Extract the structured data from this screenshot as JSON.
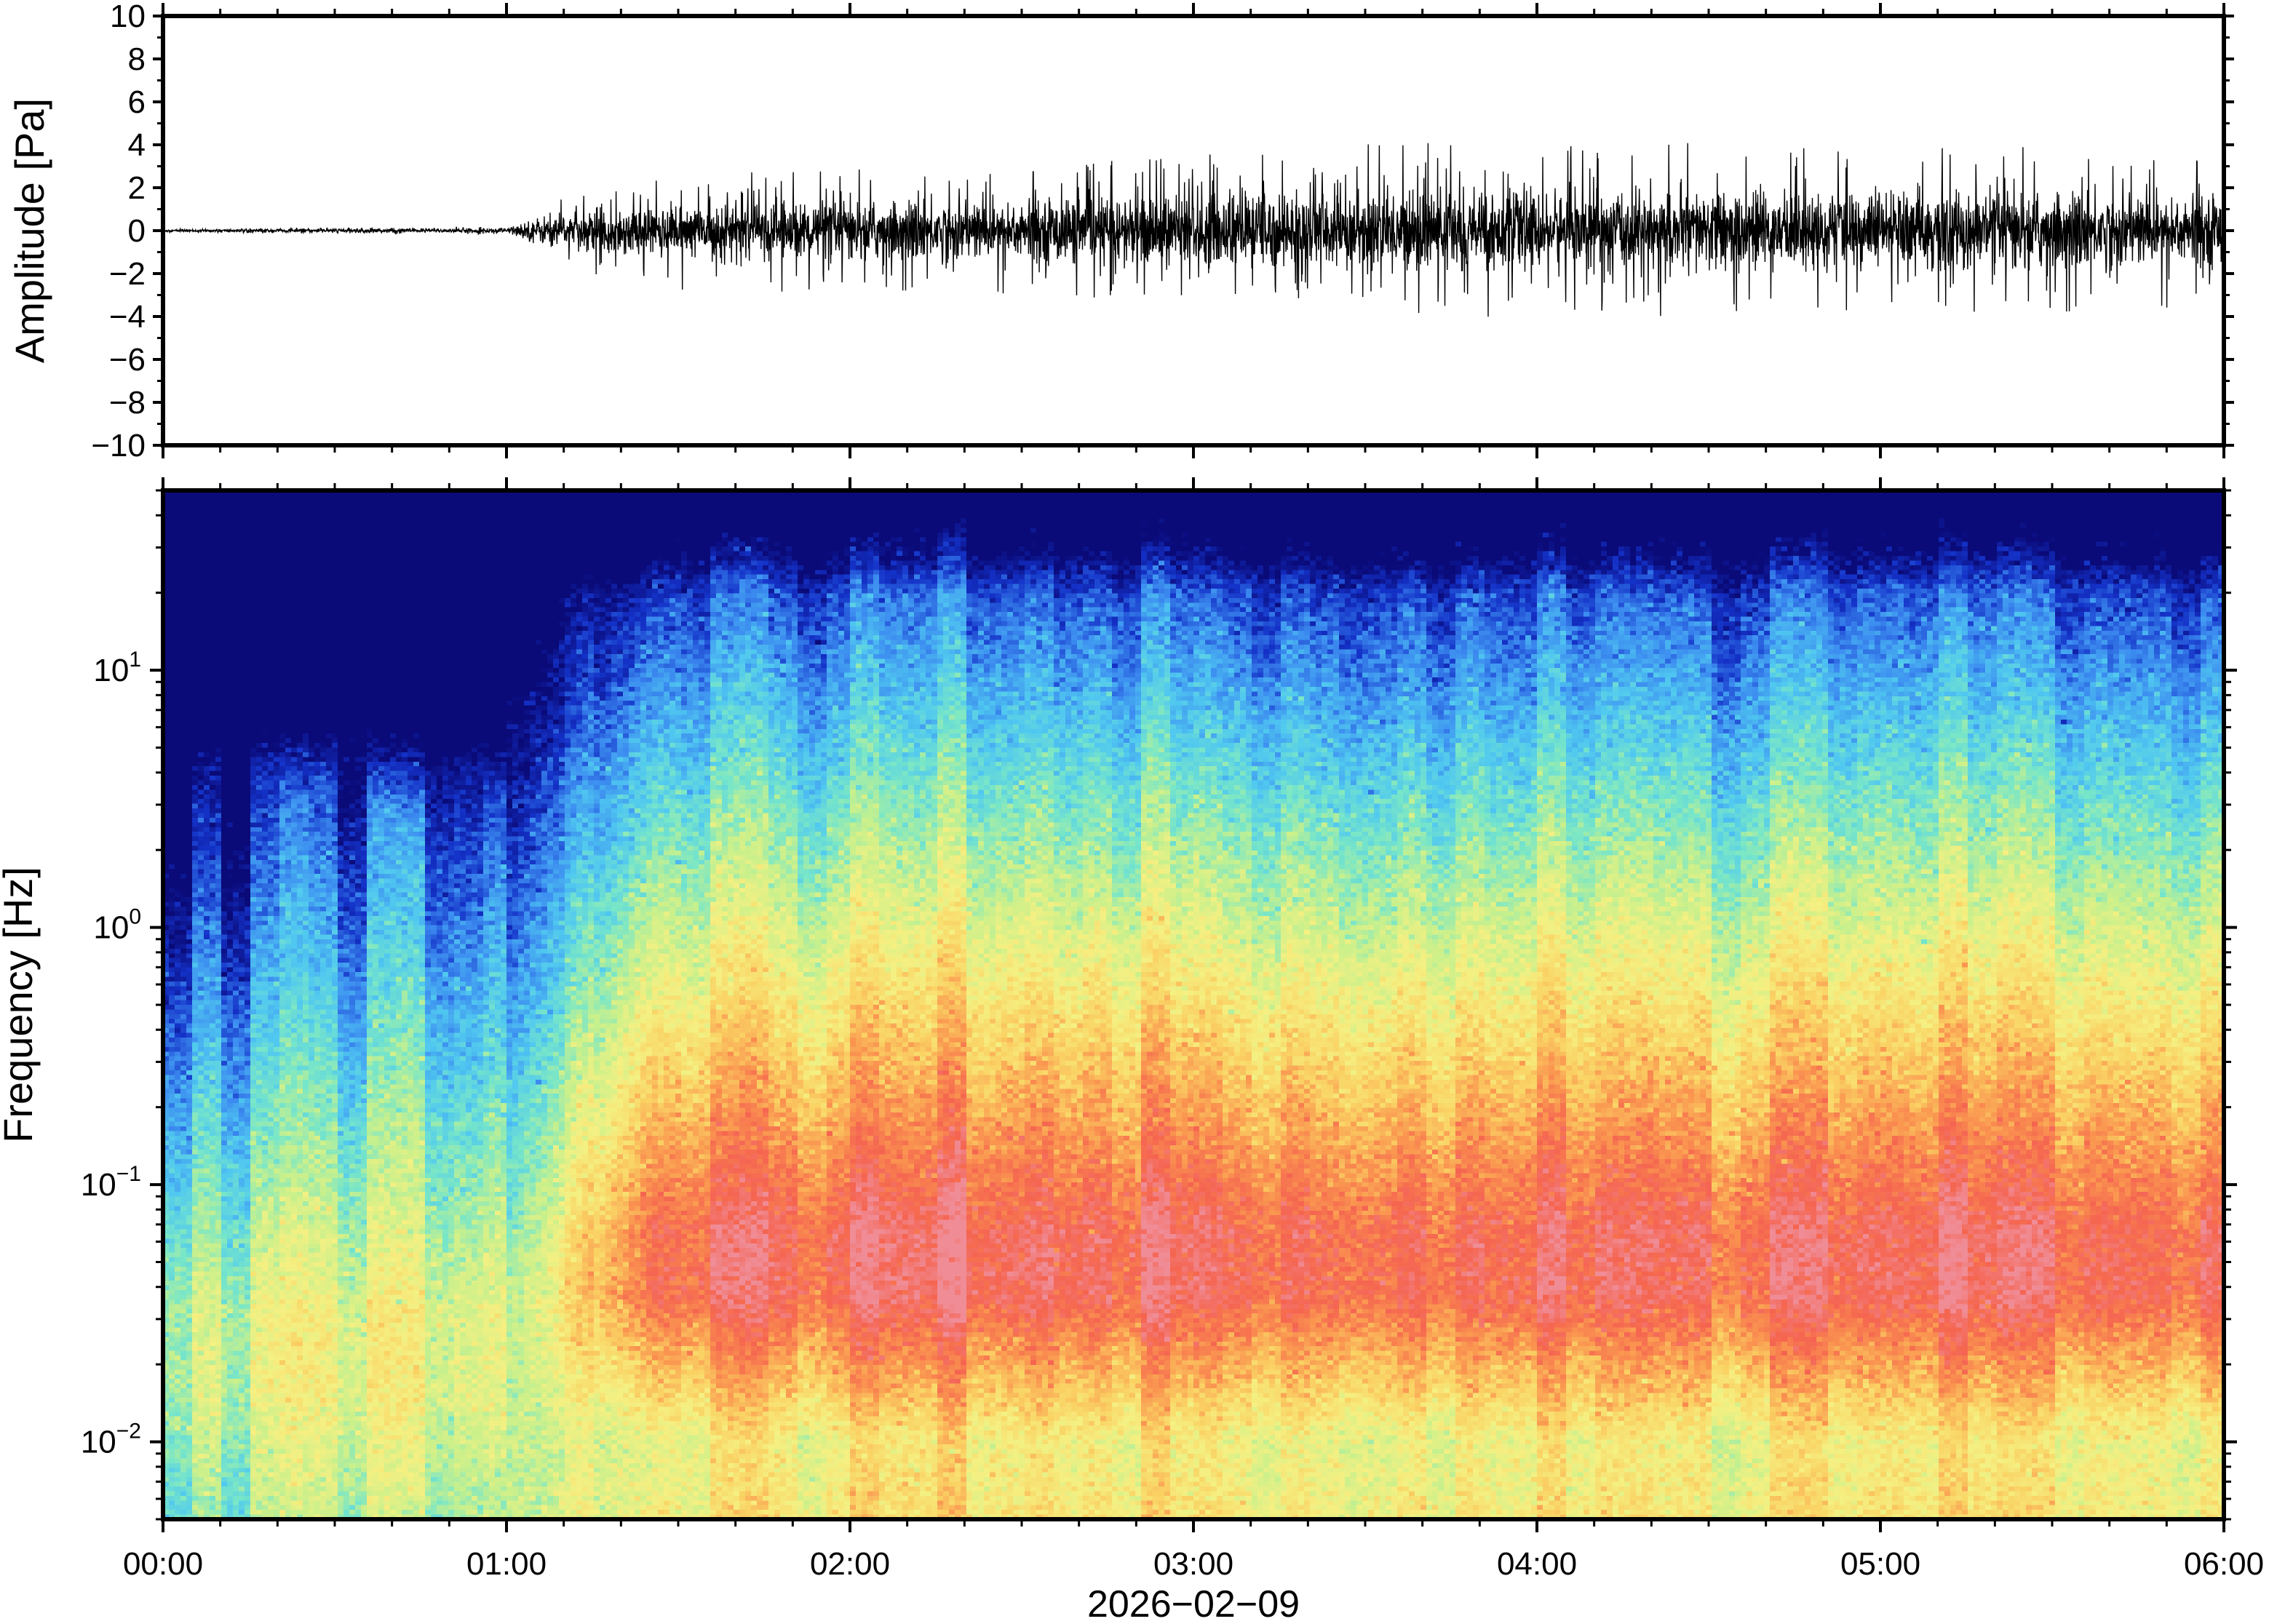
{
  "chart_data": [
    {
      "type": "line",
      "panel": "waveform",
      "ylabel": "Amplitude [Pa]",
      "ylim": [
        -10,
        10
      ],
      "yticks": [
        {
          "value": 10,
          "label": "10"
        },
        {
          "value": 8,
          "label": "8"
        },
        {
          "value": 6,
          "label": "6"
        },
        {
          "value": 4,
          "label": "4"
        },
        {
          "value": 2,
          "label": "2"
        },
        {
          "value": 0,
          "label": "0"
        },
        {
          "value": -2,
          "label": "−2"
        },
        {
          "value": -4,
          "label": "−4"
        },
        {
          "value": -6,
          "label": "−6"
        },
        {
          "value": -8,
          "label": "−8"
        },
        {
          "value": -10,
          "label": "−10"
        }
      ],
      "xlim": [
        "00:00",
        "06:00"
      ],
      "color": "#000000",
      "envelope": {
        "time": [
          "00:00",
          "00:30",
          "01:00",
          "01:05",
          "01:15",
          "01:30",
          "02:00",
          "02:30",
          "03:00",
          "03:30",
          "04:00",
          "04:30",
          "05:00",
          "05:30",
          "06:00"
        ],
        "typical_abs_amplitude": [
          0.05,
          0.08,
          0.1,
          0.5,
          0.9,
          1.1,
          1.2,
          1.3,
          1.6,
          1.7,
          1.6,
          1.6,
          1.6,
          1.6,
          1.5
        ],
        "peak_abs_amplitude": [
          0.1,
          0.15,
          0.2,
          1.0,
          2.0,
          2.8,
          2.9,
          3.0,
          3.5,
          4.3,
          4.0,
          4.1,
          3.8,
          4.0,
          3.5
        ]
      }
    },
    {
      "type": "heatmap",
      "panel": "spectrogram",
      "ylabel": "Frequency [Hz]",
      "yscale": "log",
      "ylim": [
        0.005,
        50
      ],
      "yticks": [
        {
          "value": 0.01,
          "base": "10",
          "exp": "−2"
        },
        {
          "value": 0.1,
          "base": "10",
          "exp": "−1"
        },
        {
          "value": 1,
          "base": "10",
          "exp": "0"
        },
        {
          "value": 10,
          "base": "10",
          "exp": "1"
        }
      ],
      "xlim": [
        "00:00",
        "06:00"
      ],
      "colormap": [
        "#0a0a78",
        "#1432c8",
        "#3c8cf0",
        "#50c8f0",
        "#78e6c8",
        "#c8f08c",
        "#f5f082",
        "#fad264",
        "#fa9650",
        "#f56450",
        "#f08c96"
      ],
      "relative_power_by_period": [
        {
          "period": "00:00–01:00",
          "low_freq": "medium",
          "high_freq": "very low"
        },
        {
          "period": "01:00–06:00",
          "low_freq": "high",
          "high_freq": "low"
        }
      ]
    }
  ],
  "xaxis": {
    "ticks": [
      {
        "time": "00:00",
        "label": "00:00"
      },
      {
        "time": "01:00",
        "label": "01:00"
      },
      {
        "time": "02:00",
        "label": "02:00"
      },
      {
        "time": "03:00",
        "label": "03:00"
      },
      {
        "time": "04:00",
        "label": "04:00"
      },
      {
        "time": "05:00",
        "label": "05:00"
      },
      {
        "time": "06:00",
        "label": "06:00"
      }
    ],
    "date": "2026−02−09"
  }
}
